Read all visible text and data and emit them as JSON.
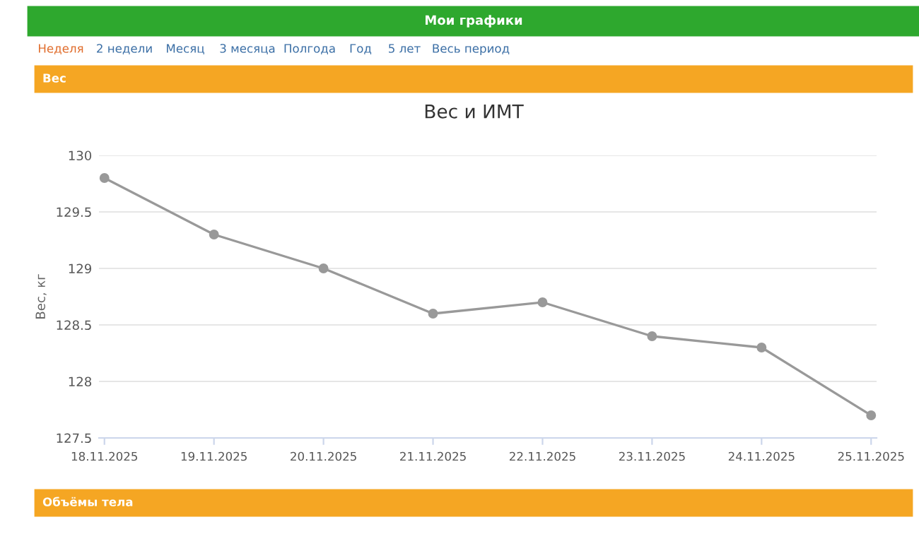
{
  "chart_data": {
    "type": "line",
    "title": "Вес и ИМТ",
    "ylabel": "Вес, кг",
    "categories": [
      "18.11.2025",
      "19.11.2025",
      "20.11.2025",
      "21.11.2025",
      "22.11.2025",
      "23.11.2025",
      "24.11.2025",
      "25.11.2025"
    ],
    "series": [
      {
        "color": "#999999",
        "values": [
          129.8,
          129.3,
          129.0,
          128.6,
          128.7,
          128.4,
          128.3,
          127.7
        ]
      }
    ],
    "ylim": [
      127.5,
      130
    ],
    "yticks": [
      127.5,
      128,
      128.5,
      129,
      129.5,
      130
    ],
    "grid": "y",
    "marker": "circle",
    "line_style": "solid",
    "annotations": [
      "Мои графики",
      "Неделя",
      "2 недели",
      "Месяц",
      "3 месяца",
      "Полгода",
      "Год",
      "5 лет",
      "Весь период",
      "Вес",
      "Объёмы тела"
    ]
  }
}
